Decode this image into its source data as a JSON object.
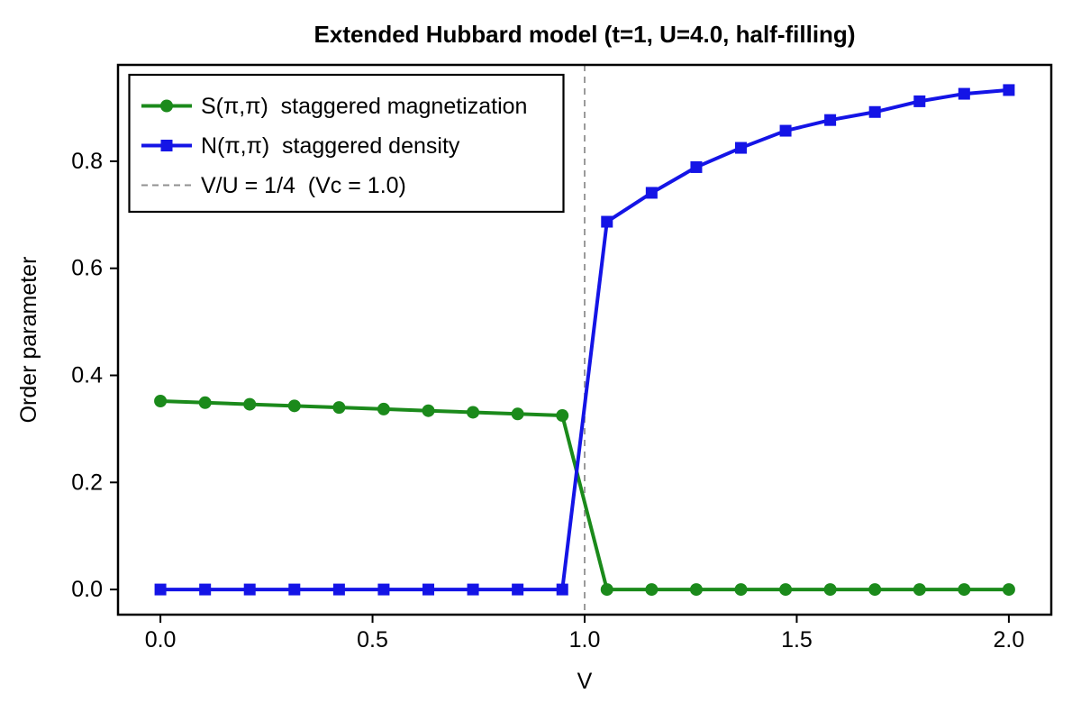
{
  "chart_data": {
    "type": "line",
    "title": "Extended Hubbard model  (t=1, U=4.0, half-filling)",
    "xlabel": "V",
    "ylabel": "Order parameter",
    "grid": false,
    "legend_position": "upper left",
    "xlim": [
      -0.1,
      2.1
    ],
    "ylim": [
      -0.047,
      0.98
    ],
    "xticks": [
      0.0,
      0.5,
      1.0,
      1.5,
      2.0
    ],
    "xtick_labels": [
      "0.0",
      "0.5",
      "1.0",
      "1.5",
      "2.0"
    ],
    "yticks": [
      0.0,
      0.2,
      0.4,
      0.6,
      0.8
    ],
    "ytick_labels": [
      "0.0",
      "0.2",
      "0.4",
      "0.6",
      "0.8"
    ],
    "x": [
      0.0,
      0.1053,
      0.2105,
      0.3158,
      0.4211,
      0.5263,
      0.6316,
      0.7368,
      0.8421,
      0.9474,
      1.0526,
      1.1579,
      1.2632,
      1.3684,
      1.4737,
      1.5789,
      1.6842,
      1.7895,
      1.8947,
      2.0
    ],
    "series": [
      {
        "id": "s-pi-pi",
        "name": "S(π,π)  staggered magnetization",
        "color": "#1b8a1b",
        "marker": "circle",
        "values": [
          0.352,
          0.349,
          0.346,
          0.343,
          0.34,
          0.337,
          0.334,
          0.331,
          0.328,
          0.325,
          0.0,
          0.0,
          0.0,
          0.0,
          0.0,
          0.0,
          0.0,
          0.0,
          0.0,
          0.0
        ]
      },
      {
        "id": "n-pi-pi",
        "name": "N(π,π)  staggered density",
        "color": "#1414e6",
        "marker": "square",
        "values": [
          0.0,
          0.0,
          0.0,
          0.0,
          0.0,
          0.0,
          0.0,
          0.0,
          0.0,
          0.0,
          0.687,
          0.741,
          0.789,
          0.825,
          0.857,
          0.877,
          0.892,
          0.912,
          0.926,
          0.933
        ]
      }
    ],
    "vline": {
      "x": 1.0,
      "color": "#909090",
      "style": "dashed"
    },
    "legend": [
      {
        "label": "S(π,π)  staggered magnetization",
        "color": "#1b8a1b",
        "marker": "circle"
      },
      {
        "label": "N(π,π)  staggered density",
        "color": "#1414e6",
        "marker": "square"
      },
      {
        "label": "V/U = 1/4  (Vc = 1.0)",
        "color": "#909090",
        "marker": "dashed-line"
      }
    ],
    "colors": {
      "axes": "#000000",
      "background": "#ffffff"
    }
  }
}
